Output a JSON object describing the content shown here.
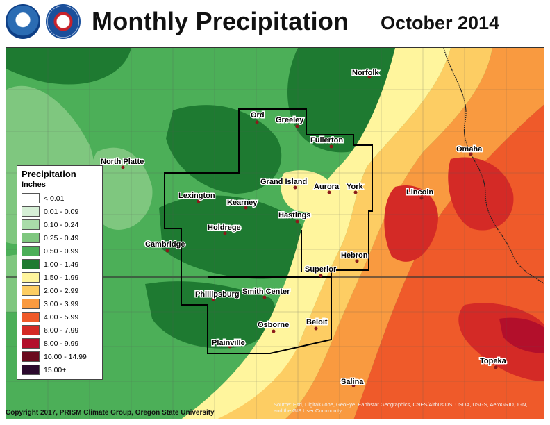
{
  "header": {
    "title": "Monthly Precipitation",
    "period": "October 2014",
    "logos": [
      "noaa-logo",
      "nws-logo"
    ]
  },
  "legend": {
    "title": "Precipitation",
    "units": "Inches",
    "classes": [
      {
        "label": "< 0.01",
        "color": "#ffffff"
      },
      {
        "label": "0.01 - 0.09",
        "color": "#d6efd6"
      },
      {
        "label": "0.10 - 0.24",
        "color": "#a9dca9"
      },
      {
        "label": "0.25 - 0.49",
        "color": "#7fc77f"
      },
      {
        "label": "0.50 - 0.99",
        "color": "#4caf58"
      },
      {
        "label": "1.00 - 1.49",
        "color": "#1e7a31"
      },
      {
        "label": "1.50 - 1.99",
        "color": "#fff59d"
      },
      {
        "label": "2.00 - 2.99",
        "color": "#fdcd63"
      },
      {
        "label": "3.00 - 3.99",
        "color": "#f99a40"
      },
      {
        "label": "4.00 - 5.99",
        "color": "#ef5a2a"
      },
      {
        "label": "6.00 - 7.99",
        "color": "#d42a26"
      },
      {
        "label": "8.00 - 9.99",
        "color": "#b30f2b"
      },
      {
        "label": "10.00 - 14.99",
        "color": "#6b0a1e"
      },
      {
        "label": "15.00+",
        "color": "#2c0a2e"
      }
    ]
  },
  "cities": [
    {
      "name": "Norfolk"
    },
    {
      "name": "Ord"
    },
    {
      "name": "Greeley"
    },
    {
      "name": "Fullerton"
    },
    {
      "name": "North Platte"
    },
    {
      "name": "Omaha"
    },
    {
      "name": "Grand Island"
    },
    {
      "name": "Aurora"
    },
    {
      "name": "York"
    },
    {
      "name": "Lexington"
    },
    {
      "name": "Kearney"
    },
    {
      "name": "Lincoln"
    },
    {
      "name": "Hastings"
    },
    {
      "name": "Holdrege"
    },
    {
      "name": "Cambridge"
    },
    {
      "name": "Hebron"
    },
    {
      "name": "Superior"
    },
    {
      "name": "Phillipsburg"
    },
    {
      "name": "Smith Center"
    },
    {
      "name": "Beloit"
    },
    {
      "name": "Osborne"
    },
    {
      "name": "Plainville"
    },
    {
      "name": "Topeka"
    },
    {
      "name": "Salina"
    }
  ],
  "footer": {
    "copyright": "Copyright 2017, PRISM Climate Group, Oregon State University",
    "source": "Source: Esri, DigitalGlobe, GeoEye, Earthstar Geographics, CNES/Airbus DS, USDA, USGS, AeroGRID, IGN, and the GIS User Community"
  }
}
